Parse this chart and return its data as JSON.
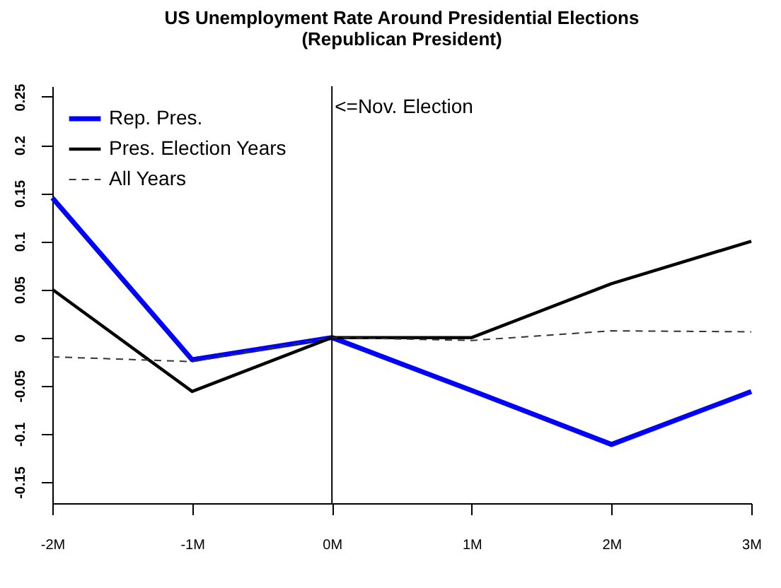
{
  "chart_data": {
    "type": "line",
    "title": "US Unemployment Rate Around Presidential Elections",
    "subtitle": "(Republican President)",
    "categories": [
      "-2M",
      "-1M",
      "0M",
      "1M",
      "2M",
      "3M"
    ],
    "series": [
      {
        "name": "Rep. Pres.",
        "color": "#0000ff",
        "line_style": "solid",
        "values": [
          0.145,
          -0.023,
          0,
          -0.055,
          -0.111,
          -0.056
        ]
      },
      {
        "name": "Pres. Election Years",
        "color": "#000000",
        "line_style": "solid",
        "values": [
          0.05,
          -0.056,
          0,
          0,
          0.056,
          0.1
        ]
      },
      {
        "name": "All Years",
        "color": "#333333",
        "line_style": "dashed",
        "values": [
          -0.02,
          -0.025,
          0,
          -0.003,
          0.007,
          0.006
        ]
      }
    ],
    "ylim": [
      -0.172,
      0.261
    ],
    "yticks": [
      -0.15,
      -0.1,
      -0.05,
      0,
      0.05,
      0.1,
      0.15,
      0.2,
      0.25
    ],
    "ref_lines": [
      {
        "axis": "x",
        "value": "0M",
        "label": "<=Nov. Election",
        "color": "#000000"
      }
    ],
    "grid": false,
    "legend": "top left",
    "marker": "none"
  }
}
